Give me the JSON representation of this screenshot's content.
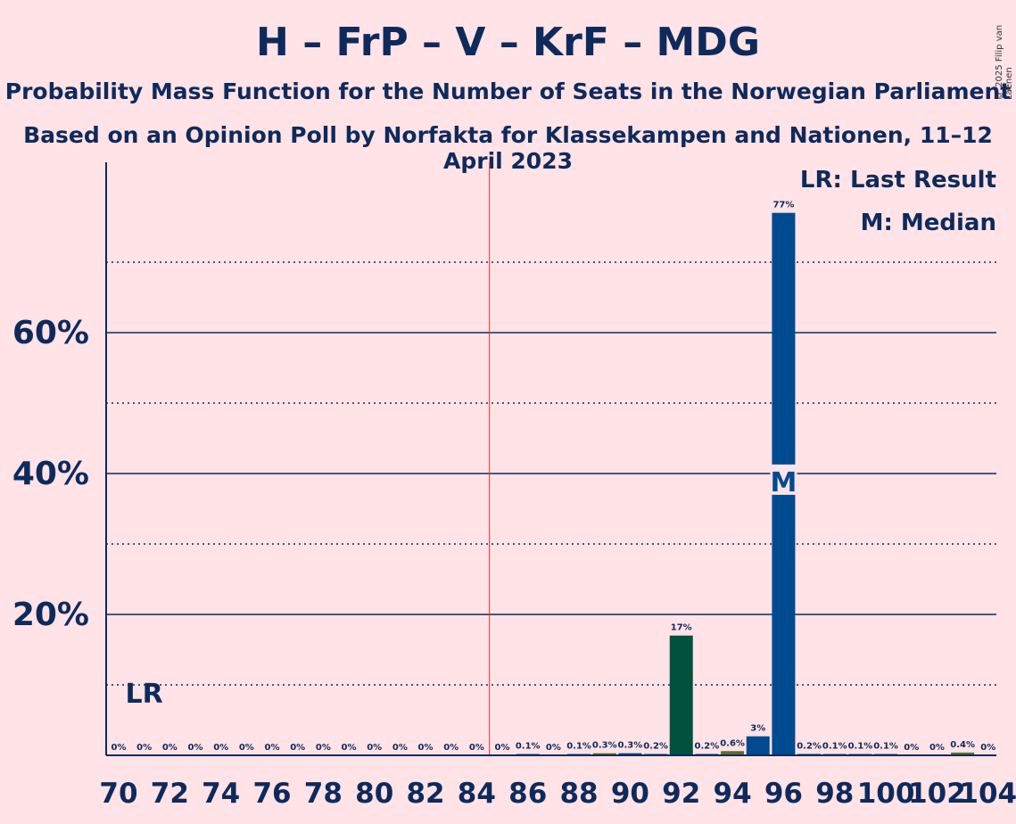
{
  "title": "H – FrP – V – KrF – MDG",
  "subtitle1": "Probability Mass Function for the Number of Seats in the Norwegian Parliament",
  "subtitle2": "Based on an Opinion Poll by Norfakta for Klassekampen and Nationen, 11–12 April 2023",
  "credit": "© 2025 Filip van Laenen",
  "legend": {
    "lr": "LR: Last Result",
    "m": "M: Median"
  },
  "markers": {
    "lr_label": "LR",
    "median_label": "M"
  },
  "colors": {
    "background": "#ffe3e6",
    "navy": "#0e2a5c",
    "bar_blue": "#004a8f",
    "bar_green": "#00523f",
    "bar_olive": "#5a6e2a",
    "majority_line": "#e03030"
  },
  "chart_data": {
    "type": "bar",
    "x": [
      70,
      71,
      72,
      73,
      74,
      75,
      76,
      77,
      78,
      79,
      80,
      81,
      82,
      83,
      84,
      85,
      86,
      87,
      88,
      89,
      90,
      91,
      92,
      93,
      94,
      95,
      96,
      97,
      98,
      99,
      100,
      101,
      102,
      103,
      104
    ],
    "values": [
      0,
      0,
      0,
      0,
      0,
      0,
      0,
      0,
      0,
      0,
      0,
      0,
      0,
      0,
      0,
      0,
      0.1,
      0,
      0.1,
      0.3,
      0.3,
      0.2,
      17,
      0.2,
      0.6,
      2.7,
      77,
      0.2,
      0.1,
      0.1,
      0.1,
      0,
      0,
      0.4,
      0
    ],
    "labels": [
      "0%",
      "0%",
      "0%",
      "0%",
      "0%",
      "0%",
      "0%",
      "0%",
      "0%",
      "0%",
      "0%",
      "0%",
      "0%",
      "0%",
      "0%",
      "0%",
      "0.1%",
      "0%",
      "0.1%",
      "0.3%",
      "0.3%",
      "0.2%",
      "17%",
      "0.2%",
      "0.6%",
      "3%",
      "77%",
      "0.2%",
      "0.1%",
      "0.1%",
      "0.1%",
      "0%",
      "0%",
      "0.4%",
      "0%"
    ],
    "bar_colors": {
      "89": "olive",
      "90": "blue",
      "92": "green",
      "94": "olive",
      "95": "blue",
      "96": "blue",
      "103": "olive"
    },
    "x_ticks": [
      70,
      72,
      74,
      76,
      78,
      80,
      82,
      84,
      86,
      88,
      90,
      92,
      94,
      96,
      98,
      100,
      102,
      104
    ],
    "y_ticks": [
      20,
      40,
      60
    ],
    "y_tick_labels": [
      "20%",
      "40%",
      "60%"
    ],
    "ylim": [
      0,
      84
    ],
    "grid": {
      "solid": [
        20,
        40,
        60
      ],
      "dotted": [
        10,
        30,
        50,
        70
      ]
    },
    "majority_line_after_seat": 84,
    "last_result_seat": 71,
    "median_seat": 96,
    "legend_position": "top-right"
  }
}
